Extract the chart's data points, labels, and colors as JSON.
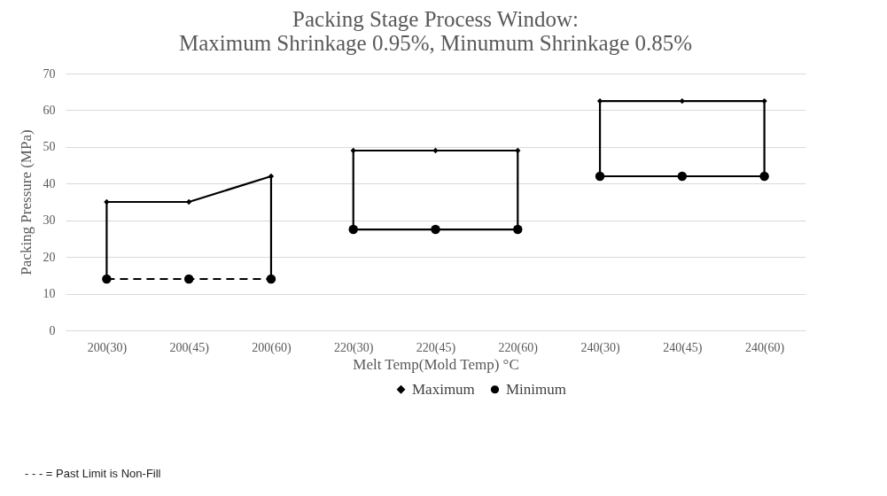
{
  "chart_data": {
    "type": "line",
    "title": "Packing Stage Process Window:\nMaximum Shrinkage 0.95%, Minumum Shrinkage 0.85%",
    "xlabel": "Melt Temp(Mold Temp) °C",
    "ylabel": "Packing Pressure (MPa)",
    "categories": [
      "200(30)",
      "200(45)",
      "200(60)",
      "220(30)",
      "220(45)",
      "220(60)",
      "240(30)",
      "240(45)",
      "240(60)"
    ],
    "ylim": [
      0,
      70
    ],
    "yticks": [
      0,
      10,
      20,
      30,
      40,
      50,
      60,
      70
    ],
    "grid": "y",
    "legend": "bottom",
    "annotations": [
      "- - - = Past Limit is Non-Fill"
    ],
    "series": [
      {
        "name": "Maximum",
        "type": "scatter",
        "marker": "diamond",
        "color": "#000000",
        "values": [
          35,
          35,
          42,
          49,
          49,
          49,
          62.5,
          62.5,
          62.5
        ]
      },
      {
        "name": "Minimum",
        "type": "scatter",
        "marker": "circle",
        "color": "#000000",
        "values": [
          14,
          14,
          14,
          27.5,
          27.5,
          27.5,
          42,
          42,
          42
        ]
      },
      {
        "type": "line",
        "color": "#000000",
        "line_style": "solid",
        "x": [
          "200(30)",
          "200(30)",
          "200(45)",
          "200(60)",
          "200(60)"
        ],
        "values": [
          14,
          35,
          35,
          42,
          14
        ]
      },
      {
        "type": "line",
        "color": "#000000",
        "line_style": "dashed",
        "x": [
          "200(30)",
          "200(45)",
          "200(60)"
        ],
        "values": [
          14,
          14,
          14
        ]
      },
      {
        "type": "line",
        "color": "#000000",
        "line_style": "solid",
        "x": [
          "220(30)",
          "220(45)",
          "220(60)",
          "220(60)"
        ],
        "values": [
          49,
          49,
          49,
          27.5
        ]
      },
      {
        "type": "line",
        "color": "#000000",
        "line_style": "solid",
        "x": [
          "220(30)",
          "220(30)",
          "220(45)",
          "220(60)"
        ],
        "values": [
          49,
          27.5,
          27.5,
          27.5
        ]
      },
      {
        "type": "line",
        "color": "#000000",
        "line_style": "solid",
        "x": [
          "240(30)",
          "240(45)",
          "240(60)",
          "240(60)"
        ],
        "values": [
          62.5,
          62.5,
          62.5,
          42
        ]
      },
      {
        "type": "line",
        "color": "#000000",
        "line_style": "solid",
        "x": [
          "240(30)",
          "240(30)",
          "240(45)",
          "240(60)"
        ],
        "values": [
          62.5,
          42,
          42,
          42
        ]
      }
    ]
  }
}
